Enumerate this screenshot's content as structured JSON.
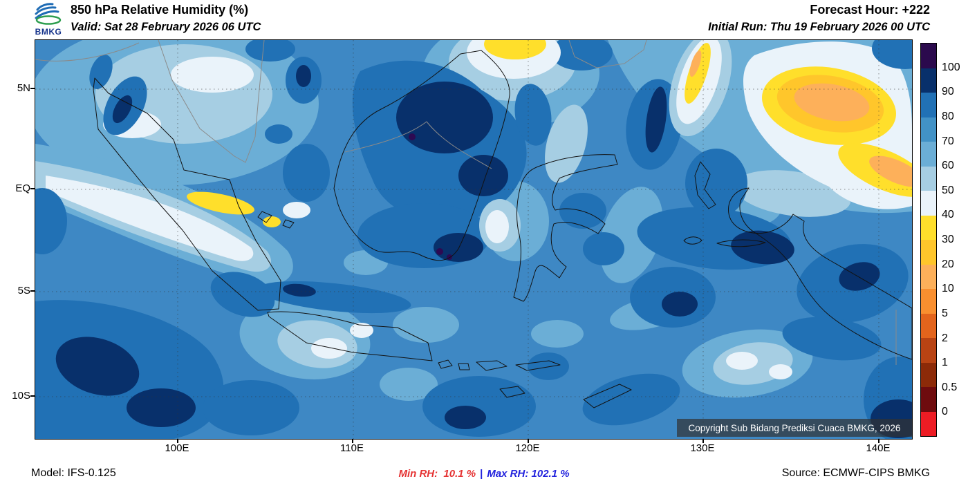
{
  "header": {
    "logo_text": "BMKG",
    "title": "850 hPa Relative Humidity (%)",
    "valid_label": "Valid: Sat 28 February 2026 06 UTC",
    "forecast_hour": "Forecast Hour: +222",
    "initial_run": "Initial Run: Thu 19 February 2026 00 UTC"
  },
  "map": {
    "y_ticks": [
      "5N",
      "EQ",
      "5S",
      "10S"
    ],
    "x_ticks": [
      "100E",
      "110E",
      "120E",
      "130E",
      "140E"
    ],
    "copyright": "Copyright Sub Bidang Prediksi Cuaca BMKG, 2026"
  },
  "colorbar": {
    "labels": [
      "100",
      "90",
      "80",
      "70",
      "60",
      "50",
      "40",
      "30",
      "20",
      "10",
      "5",
      "2",
      "1",
      "0.5",
      "0"
    ],
    "colors": [
      "#2b0a4d",
      "#08306b",
      "#2171b5",
      "#4292c6",
      "#6baed6",
      "#a6cee3",
      "#eaf3fa",
      "#ffdf2b",
      "#ffc62b",
      "#fdb05a",
      "#f98f2f",
      "#e3641c",
      "#b84313",
      "#8c2a08",
      "#6e0b0e",
      "#ed1c24"
    ]
  },
  "footer": {
    "model": "Model: IFS-0.125",
    "min_rh": "Min RH:  10.1 %",
    "separator": "|",
    "max_rh": "Max RH: 102.1 %",
    "source": "Source: ECMWF-CIPS BMKG",
    "min_color": "#e53333",
    "max_color": "#2222dd"
  }
}
